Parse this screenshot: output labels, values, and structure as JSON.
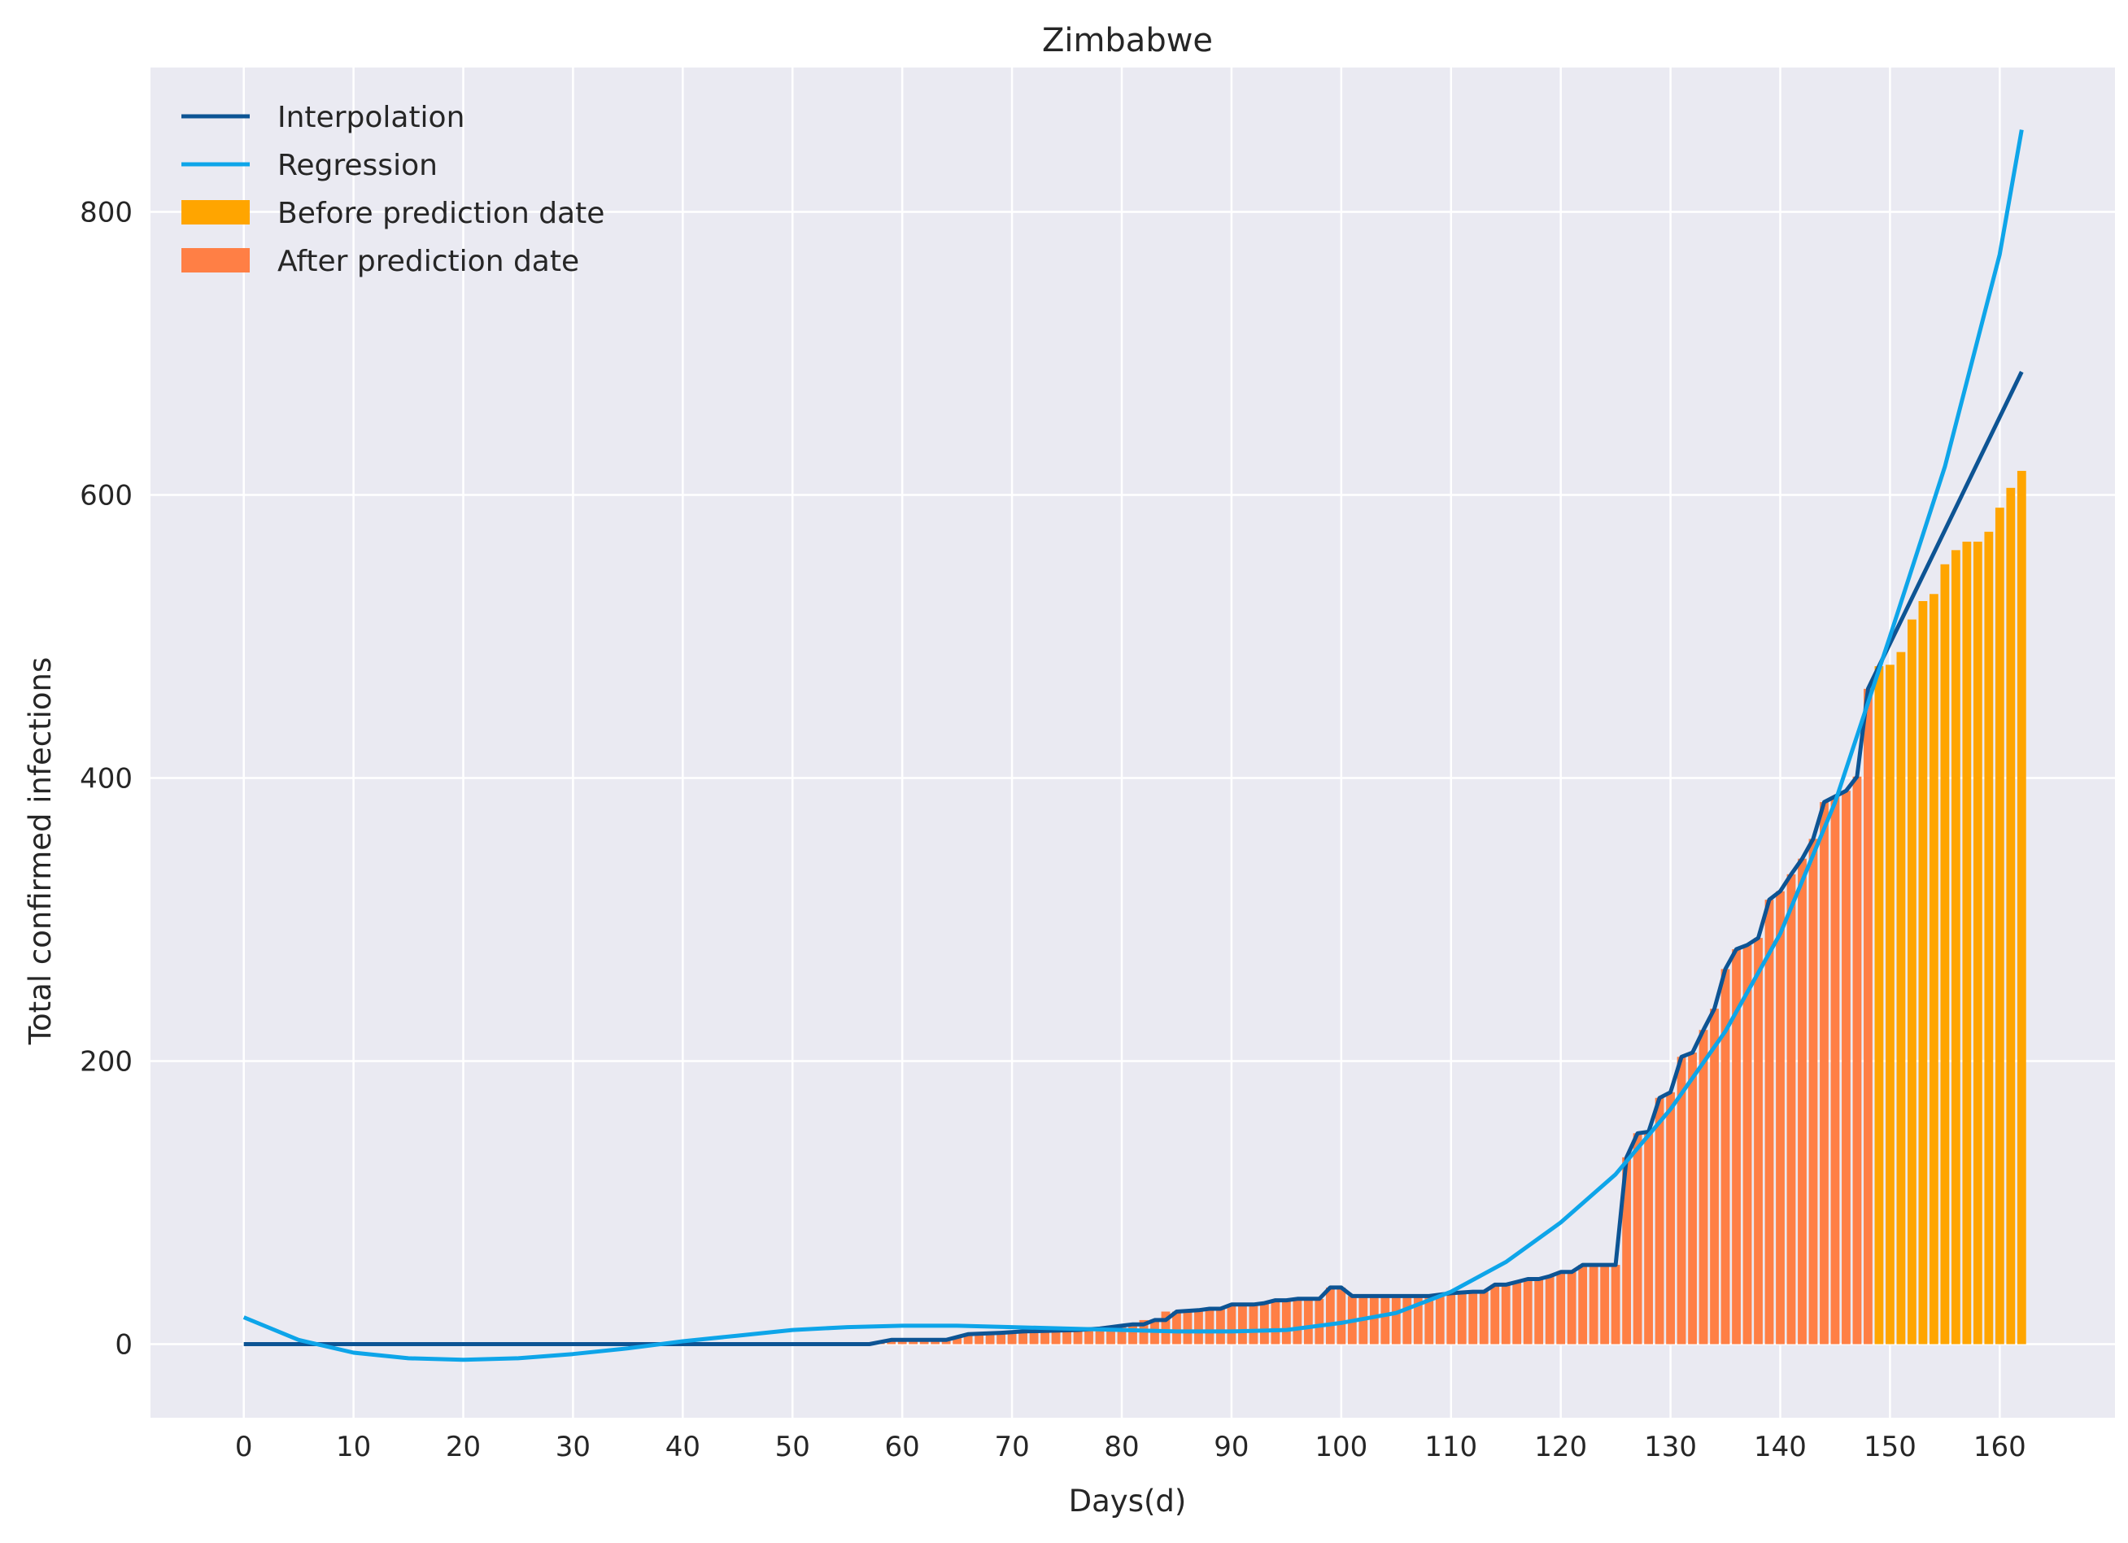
{
  "chart_data": {
    "type": "bar",
    "title": "Zimbabwe",
    "xlabel": "Days(d)",
    "ylabel": "Total confirmed infections",
    "xlim": [
      -8.5,
      170.5
    ],
    "ylim": [
      -52,
      902
    ],
    "x_ticks": [
      0,
      10,
      20,
      30,
      40,
      50,
      60,
      70,
      80,
      90,
      100,
      110,
      120,
      130,
      140,
      150,
      160
    ],
    "y_ticks": [
      0,
      200,
      400,
      600,
      800
    ],
    "grid": true,
    "background": "#EAEAF2",
    "legend_position": "upper-left",
    "legend": [
      {
        "label": "Interpolation",
        "kind": "line",
        "color": "#0D5494"
      },
      {
        "label": "Regression",
        "kind": "line",
        "color": "#0EA5E9"
      },
      {
        "label": "Before prediction date",
        "kind": "patch",
        "color": "#FFA500"
      },
      {
        "label": "After prediction date",
        "kind": "patch",
        "color": "#FF7F45"
      }
    ],
    "bars": {
      "start_day": 0,
      "prediction_split_day": 149,
      "color_before_split": "#FF7F45",
      "color_after_split": "#FFA500",
      "values": [
        0,
        0,
        0,
        0,
        0,
        0,
        0,
        0,
        0,
        0,
        0,
        0,
        0,
        0,
        0,
        0,
        0,
        0,
        0,
        0,
        0,
        0,
        0,
        0,
        0,
        0,
        0,
        0,
        0,
        0,
        0,
        0,
        0,
        0,
        0,
        0,
        0,
        0,
        0,
        0,
        0,
        0,
        0,
        0,
        0,
        0,
        0,
        0,
        0,
        0,
        0,
        0,
        0,
        0,
        0,
        0,
        0,
        0,
        1,
        3,
        3,
        3,
        3,
        3,
        3,
        5,
        7,
        7,
        7,
        8,
        8,
        9,
        9,
        9,
        9,
        9,
        10,
        10,
        11,
        13,
        14,
        14,
        17,
        17,
        23,
        23,
        24,
        25,
        25,
        25,
        28,
        28,
        28,
        29,
        31,
        31,
        32,
        32,
        32,
        40,
        40,
        34,
        34,
        34,
        34,
        34,
        34,
        34,
        34,
        35,
        36,
        36,
        37,
        37,
        42,
        42,
        44,
        46,
        46,
        48,
        51,
        51,
        56,
        56,
        56,
        56,
        132,
        149,
        150,
        174,
        178,
        203,
        206,
        222,
        237,
        265,
        279,
        282,
        287,
        314,
        320,
        332,
        343,
        357,
        383,
        387,
        391,
        401,
        463,
        479,
        480,
        489,
        512,
        525,
        530,
        551,
        561,
        567,
        567,
        574,
        591,
        605,
        617
      ]
    },
    "series": [
      {
        "name": "Interpolation",
        "kind": "line",
        "color": "#0D5494",
        "x": [
          0,
          57,
          59,
          64,
          66,
          69,
          71,
          76,
          78,
          80,
          81,
          82,
          83,
          84,
          85,
          87,
          88,
          89,
          90,
          91,
          92,
          93,
          94,
          95,
          96,
          97,
          98,
          99,
          100,
          101,
          108,
          110,
          112,
          113,
          114,
          115,
          116,
          117,
          118,
          119,
          120,
          121,
          122,
          123,
          124,
          125,
          126,
          127,
          128,
          129,
          130,
          131,
          132,
          133,
          134,
          135,
          136,
          137,
          138,
          139,
          140,
          141,
          142,
          143,
          144,
          145,
          146,
          147,
          148,
          149,
          162
        ],
        "y": [
          0,
          0,
          3,
          3,
          7,
          8,
          9,
          10,
          11,
          13,
          14,
          14,
          17,
          17,
          23,
          24,
          25,
          25,
          28,
          28,
          28,
          29,
          31,
          31,
          32,
          32,
          32,
          40,
          40,
          34,
          34,
          36,
          37,
          37,
          42,
          42,
          44,
          46,
          46,
          48,
          51,
          51,
          56,
          56,
          56,
          56,
          132,
          149,
          150,
          174,
          178,
          203,
          206,
          222,
          237,
          265,
          279,
          282,
          287,
          314,
          320,
          332,
          343,
          357,
          383,
          387,
          391,
          401,
          463,
          479,
          687
        ]
      },
      {
        "name": "Regression",
        "kind": "line",
        "color": "#0EA5E9",
        "x": [
          0,
          5,
          10,
          15,
          20,
          25,
          30,
          35,
          40,
          45,
          50,
          55,
          60,
          65,
          70,
          75,
          80,
          85,
          90,
          95,
          100,
          105,
          110,
          115,
          120,
          125,
          130,
          135,
          140,
          145,
          150,
          155,
          160,
          162
        ],
        "y": [
          19,
          3,
          -6,
          -10,
          -11,
          -10,
          -7,
          -3,
          2,
          6,
          10,
          12,
          13,
          13,
          12,
          11,
          10,
          9,
          9,
          10,
          15,
          22,
          37,
          58,
          86,
          120,
          166,
          221,
          290,
          383,
          500,
          620,
          770,
          858
        ]
      }
    ]
  }
}
